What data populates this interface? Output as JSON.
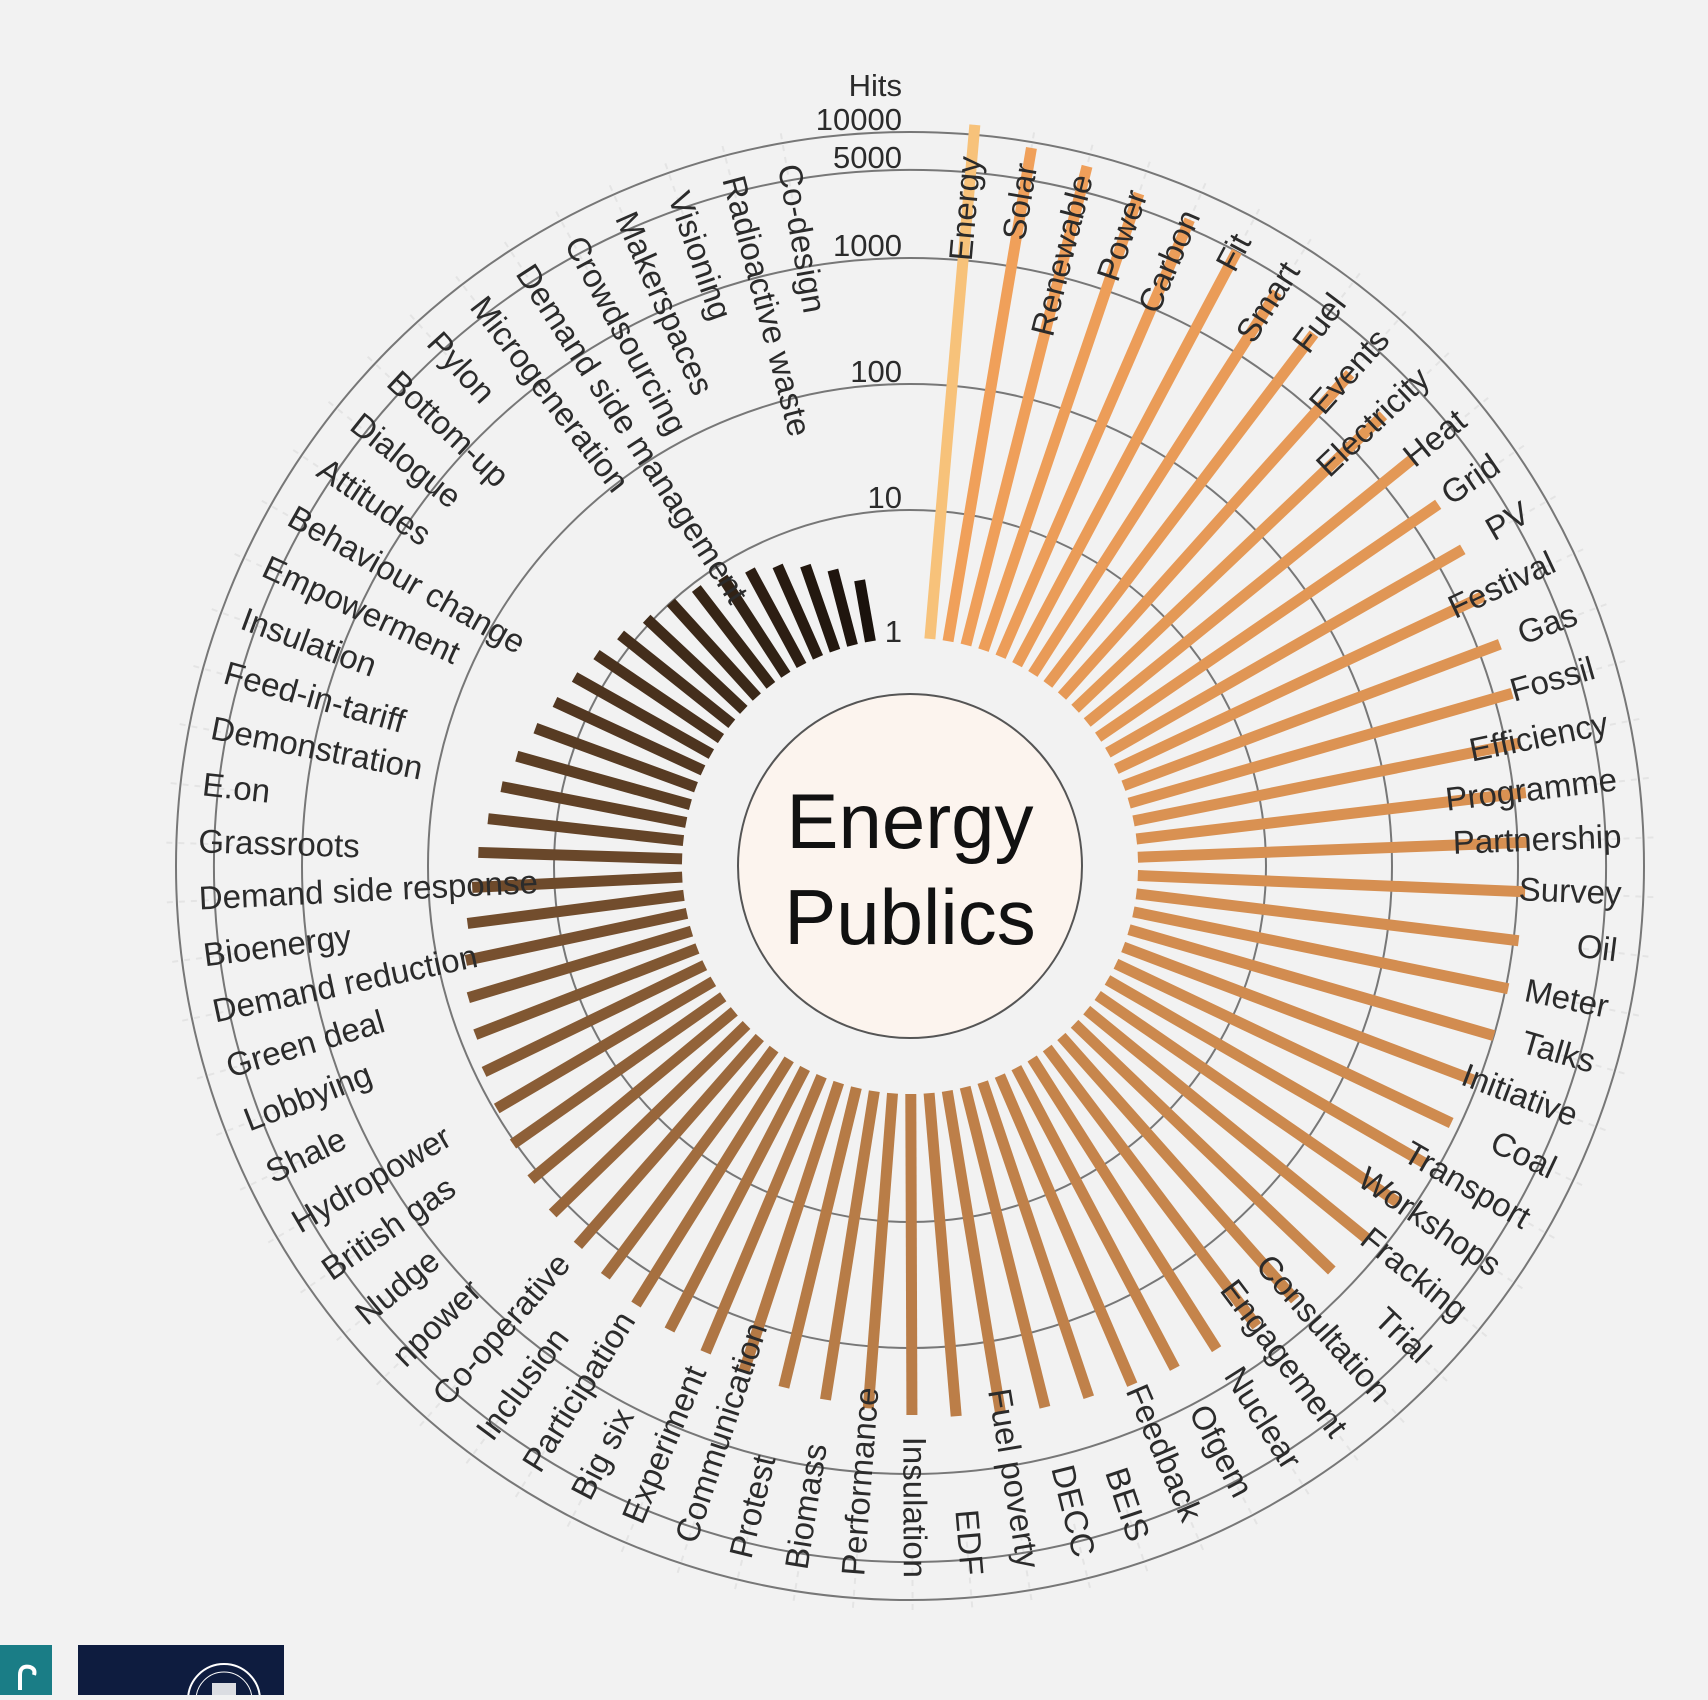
{
  "chart_data": {
    "type": "radial-bar",
    "title": "Energy Publics",
    "axis_title": "Hits",
    "scale": "log",
    "ticks": [
      "1",
      "10",
      "100",
      "1000",
      "5000",
      "10000"
    ],
    "grid": true,
    "categories": [
      "Energy",
      "Solar",
      "Renewable",
      "Power",
      "Carbon",
      "Fit",
      "Smart",
      "Fuel",
      "Events",
      "Electricity",
      "Heat",
      "Grid",
      "PV",
      "Festival",
      "Gas",
      "Fossil",
      "Efficiency",
      "Programme",
      "Partnership",
      "Survey",
      "Oil",
      "Meter",
      "Talks",
      "Initiative",
      "Coal",
      "Transport",
      "Workshops",
      "Fracking",
      "Trial",
      "Consultation",
      "Engagement",
      "Nuclear",
      "Ofgem",
      "Feedback",
      "BEIS",
      "DECC",
      "Fuel poverty",
      "EDF",
      "Insulation",
      "Performance",
      "Biomass",
      "Protest",
      "Communication",
      "Experiment",
      "Big six",
      "Participation",
      "Inclusion",
      "Co-operative",
      "npower",
      "Nudge",
      "British gas",
      "Hydropower",
      "Shale",
      "Lobbying",
      "Green deal",
      "Demand reduction",
      "Bioenergy",
      "Demand side response",
      "Grassroots",
      "E.on",
      "Demonstration",
      "Feed-in-tariff",
      "Insulation",
      "Empowerment",
      "Behaviour change",
      "Attitudes",
      "Dialogue",
      "Bottom-up",
      "Pylon",
      "Microgeneration",
      "Demand side management",
      "Crowdsourcing",
      "Makerspaces",
      "Visioning",
      "Radioactive waste",
      "Co-design"
    ],
    "values": [
      12000,
      9000,
      8000,
      6500,
      5800,
      5000,
      3800,
      3000,
      2600,
      2300,
      2000,
      1800,
      1700,
      1600,
      1500,
      1400,
      1300,
      1250,
      1200,
      1150,
      1100,
      1050,
      1000,
      900,
      850,
      800,
      750,
      700,
      650,
      600,
      560,
      520,
      480,
      450,
      420,
      400,
      380,
      360,
      340,
      310,
      290,
      270,
      250,
      230,
      210,
      190,
      170,
      150,
      135,
      120,
      105,
      95,
      85,
      75,
      68,
      60,
      52,
      45,
      40,
      35,
      30,
      26,
      22,
      19,
      17,
      15,
      13,
      11,
      10,
      9,
      8,
      7,
      6,
      5,
      4,
      3
    ]
  },
  "colors": {
    "first_bar": "#f7c27a",
    "gradient_start": "#f0a05a",
    "gradient_mid": "#b57a46",
    "gradient_end": "#1a120c",
    "center_fill": "#fcf4ee",
    "ring": "#777777",
    "background": "#f2f2f2"
  },
  "footer_logos": [
    "small-teal-logo",
    "university-crest-logo"
  ]
}
